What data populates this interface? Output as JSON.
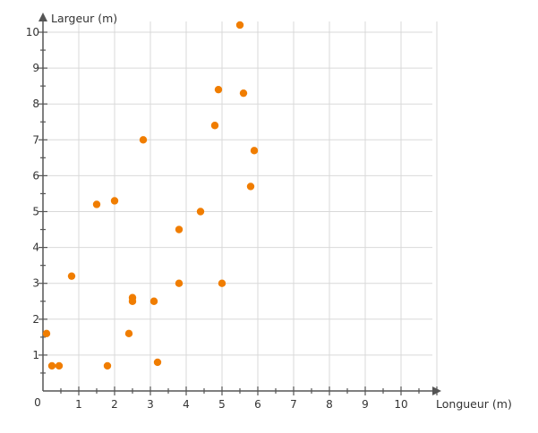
{
  "chart_data": {
    "type": "scatter",
    "title": "",
    "xlabel": "Longueur (m)",
    "ylabel": "Largeur (m)",
    "xlim": [
      0,
      11
    ],
    "ylim": [
      0,
      10
    ],
    "x_ticks": [
      "1",
      "2",
      "3",
      "4",
      "5",
      "6",
      "7",
      "8",
      "9",
      "10"
    ],
    "y_ticks": [
      "1",
      "2",
      "3",
      "4",
      "5",
      "6",
      "7",
      "8",
      "9",
      "10"
    ],
    "origin_label": "0",
    "grid": true,
    "minor_grid_step": 0.5,
    "marker_color": "#f07d00",
    "grid_color": "#d9d9d9",
    "axis_color": "#555555",
    "points": [
      {
        "x": 0.1,
        "y": 1.6
      },
      {
        "x": 0.25,
        "y": 0.7
      },
      {
        "x": 0.45,
        "y": 0.7
      },
      {
        "x": 0.8,
        "y": 3.2
      },
      {
        "x": 1.5,
        "y": 5.2
      },
      {
        "x": 1.8,
        "y": 0.7
      },
      {
        "x": 2.0,
        "y": 5.3
      },
      {
        "x": 2.4,
        "y": 1.6
      },
      {
        "x": 2.5,
        "y": 2.6
      },
      {
        "x": 2.5,
        "y": 2.5
      },
      {
        "x": 2.8,
        "y": 7.0
      },
      {
        "x": 3.1,
        "y": 2.5
      },
      {
        "x": 3.2,
        "y": 0.8
      },
      {
        "x": 3.8,
        "y": 4.5
      },
      {
        "x": 3.8,
        "y": 3.0
      },
      {
        "x": 4.4,
        "y": 5.0
      },
      {
        "x": 4.8,
        "y": 7.4
      },
      {
        "x": 4.9,
        "y": 8.4
      },
      {
        "x": 5.0,
        "y": 3.0
      },
      {
        "x": 5.5,
        "y": 10.2
      },
      {
        "x": 5.6,
        "y": 8.3
      },
      {
        "x": 5.8,
        "y": 5.7
      },
      {
        "x": 5.9,
        "y": 6.7
      }
    ]
  }
}
